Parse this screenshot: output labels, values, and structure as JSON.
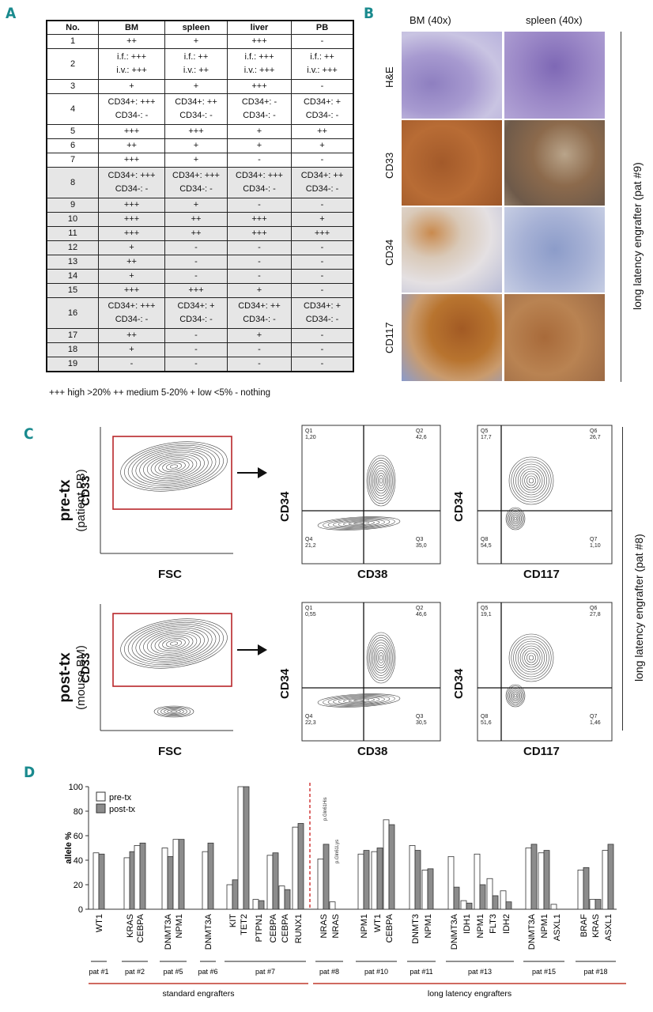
{
  "panels": {
    "A": "A",
    "B": "B",
    "C": "C",
    "D": "D"
  },
  "table": {
    "headers": [
      "No.",
      "BM",
      "spleen",
      "liver",
      "PB"
    ],
    "rows": [
      {
        "no": "1",
        "c": [
          [
            "++"
          ],
          [
            "+"
          ],
          [
            "+++"
          ],
          [
            "-"
          ]
        ],
        "shade": false
      },
      {
        "no": "2",
        "c": [
          [
            "i.f.: +++",
            "i.v.: +++"
          ],
          [
            "i.f.: ++",
            "i.v.: ++"
          ],
          [
            "i.f.: +++",
            "i.v.: +++"
          ],
          [
            "i.f.: ++",
            "i.v.: +++"
          ]
        ],
        "shade": false
      },
      {
        "no": "3",
        "c": [
          [
            "+"
          ],
          [
            "+"
          ],
          [
            "+++"
          ],
          [
            "-"
          ]
        ],
        "shade": false
      },
      {
        "no": "4",
        "c": [
          [
            "CD34+: +++",
            "CD34-: -"
          ],
          [
            "CD34+: ++",
            "CD34-: -"
          ],
          [
            "CD34+: -",
            "CD34-: -"
          ],
          [
            "CD34+: +",
            "CD34-: -"
          ]
        ],
        "shade": false
      },
      {
        "no": "5",
        "c": [
          [
            "+++"
          ],
          [
            "+++"
          ],
          [
            "+"
          ],
          [
            "++"
          ]
        ],
        "shade": false
      },
      {
        "no": "6",
        "c": [
          [
            "++"
          ],
          [
            "+"
          ],
          [
            "+"
          ],
          [
            "+"
          ]
        ],
        "shade": false
      },
      {
        "no": "7",
        "c": [
          [
            "+++"
          ],
          [
            "+"
          ],
          [
            "-"
          ],
          [
            "-"
          ]
        ],
        "shade": false
      },
      {
        "no": "8",
        "c": [
          [
            "CD34+: +++",
            "CD34-: -"
          ],
          [
            "CD34+: +++",
            "CD34-: -"
          ],
          [
            "CD34+: +++",
            "CD34-: -"
          ],
          [
            "CD34+: ++",
            "CD34-: -"
          ]
        ],
        "shade": true
      },
      {
        "no": "9",
        "c": [
          [
            "+++"
          ],
          [
            "+"
          ],
          [
            "-"
          ],
          [
            "-"
          ]
        ],
        "shade": true
      },
      {
        "no": "10",
        "c": [
          [
            "+++"
          ],
          [
            "++"
          ],
          [
            "+++"
          ],
          [
            "+"
          ]
        ],
        "shade": true
      },
      {
        "no": "11",
        "c": [
          [
            "+++"
          ],
          [
            "++"
          ],
          [
            "+++"
          ],
          [
            "+++"
          ]
        ],
        "shade": true
      },
      {
        "no": "12",
        "c": [
          [
            "+"
          ],
          [
            "-"
          ],
          [
            "-"
          ],
          [
            "-"
          ]
        ],
        "shade": true
      },
      {
        "no": "13",
        "c": [
          [
            "++"
          ],
          [
            "-"
          ],
          [
            "-"
          ],
          [
            "-"
          ]
        ],
        "shade": true
      },
      {
        "no": "14",
        "c": [
          [
            "+"
          ],
          [
            "-"
          ],
          [
            "-"
          ],
          [
            "-"
          ]
        ],
        "shade": true
      },
      {
        "no": "15",
        "c": [
          [
            "+++"
          ],
          [
            "+++"
          ],
          [
            "+"
          ],
          [
            "-"
          ]
        ],
        "shade": true
      },
      {
        "no": "16",
        "c": [
          [
            "CD34+: +++",
            "CD34-: -"
          ],
          [
            "CD34+: +",
            "CD34-: -"
          ],
          [
            "CD34+: ++",
            "CD34-: -"
          ],
          [
            "CD34+: +",
            "CD34-: -"
          ]
        ],
        "shade": true
      },
      {
        "no": "17",
        "c": [
          [
            "++"
          ],
          [
            "-"
          ],
          [
            "+"
          ],
          [
            "-"
          ]
        ],
        "shade": true
      },
      {
        "no": "18",
        "c": [
          [
            "+"
          ],
          [
            "-"
          ],
          [
            "-"
          ],
          [
            "-"
          ]
        ],
        "shade": true
      },
      {
        "no": "19",
        "c": [
          [
            "-"
          ],
          [
            "-"
          ],
          [
            "-"
          ],
          [
            "-"
          ]
        ],
        "shade": true
      }
    ],
    "legend": "+++ high >20%     ++ medium 5-20%     + low <5%     - nothing"
  },
  "ihc": {
    "columns": [
      "BM (40x)",
      "spleen (40x)"
    ],
    "rows": [
      "H&E",
      "CD33",
      "CD34",
      "CD117"
    ],
    "side_label": "long latency engrafter (pat #9)"
  },
  "flow": {
    "rows": [
      {
        "title": "pre-tx",
        "subtitle": "(patient PB)",
        "q1": [
          "Q1",
          "1,20"
        ],
        "q2": [
          "Q2",
          "42,6"
        ],
        "q3": [
          "Q3",
          "35,0"
        ],
        "q4": [
          "Q4",
          "21,2"
        ],
        "q5": [
          "Q5",
          "17,7"
        ],
        "q6": [
          "Q6",
          "26,7"
        ],
        "q7": [
          "Q7",
          "1,10"
        ],
        "q8": [
          "Q8",
          "54,5"
        ]
      },
      {
        "title": "post-tx",
        "subtitle": "(mouse BM)",
        "q1": [
          "Q1",
          "0,55"
        ],
        "q2": [
          "Q2",
          "46,6"
        ],
        "q3": [
          "Q3",
          "30,5"
        ],
        "q4": [
          "Q4",
          "22,3"
        ],
        "q5": [
          "Q5",
          "19,1"
        ],
        "q6": [
          "Q6",
          "27,8"
        ],
        "q7": [
          "Q7",
          "1,46"
        ],
        "q8": [
          "Q8",
          "51,6"
        ]
      }
    ],
    "axes": {
      "cd33": "CD33",
      "fsc": "FSC",
      "cd34": "CD34",
      "cd38": "CD38",
      "cd117": "CD117"
    },
    "side_label": "long latency engrafter (pat #8)"
  },
  "chart_data": {
    "type": "bar",
    "ylabel": "allele %",
    "ylim": [
      0,
      100
    ],
    "yticks": [
      0,
      20,
      40,
      60,
      80,
      100
    ],
    "series_names": [
      "pre-tx",
      "post-tx"
    ],
    "colors": {
      "pre": "#ffffff",
      "post": "#8c8c8c"
    },
    "categories": [
      "WT1",
      "KRAS",
      "CEBPA",
      "DNMT3A",
      "NPM1",
      "DNMT3A",
      "KIT",
      "TET2",
      "PTPN1",
      "CEBPA",
      "CEBPA",
      "RUNX1",
      "NRAS",
      "NRAS",
      "NPM1",
      "WT1",
      "CEBPA",
      "DNMT3",
      "NPM1",
      "DNMT3A",
      "IDH1",
      "NPM1",
      "FLT3",
      "IDH2",
      "DNMT3A",
      "NPM1",
      "ASXL1",
      "BRAF",
      "KRAS",
      "ASXL1"
    ],
    "pre": [
      46,
      42,
      52,
      50,
      57,
      47,
      20,
      100,
      8,
      44,
      19,
      67,
      41,
      6,
      45,
      47,
      73,
      52,
      32,
      43,
      7,
      45,
      25,
      15,
      50,
      46,
      4,
      32,
      8,
      48
    ],
    "post": [
      45,
      47,
      54,
      43,
      57,
      54,
      24,
      100,
      7,
      46,
      16,
      70,
      53,
      0,
      48,
      50,
      69,
      48,
      33,
      18,
      5,
      20,
      11,
      6,
      53,
      48,
      0,
      34,
      8,
      53
    ],
    "annotations": [
      "p.Gln61His",
      "p.Gln61Lys"
    ],
    "patients": [
      {
        "label": "pat #1",
        "from": 0,
        "to": 0
      },
      {
        "label": "pat #2",
        "from": 1,
        "to": 2
      },
      {
        "label": "pat #5",
        "from": 3,
        "to": 4
      },
      {
        "label": "pat #6",
        "from": 5,
        "to": 5
      },
      {
        "label": "pat #7",
        "from": 6,
        "to": 11
      },
      {
        "label": "pat #8",
        "from": 12,
        "to": 13
      },
      {
        "label": "pat #10",
        "from": 14,
        "to": 16
      },
      {
        "label": "pat #11",
        "from": 17,
        "to": 18
      },
      {
        "label": "pat #13",
        "from": 19,
        "to": 23
      },
      {
        "label": "pat #15",
        "from": 24,
        "to": 26
      },
      {
        "label": "pat #18",
        "from": 27,
        "to": 29
      }
    ],
    "groups": [
      {
        "label": "standard engrafters",
        "from": 0,
        "to": 11
      },
      {
        "label": "long latency engrafters",
        "from": 12,
        "to": 29
      }
    ]
  }
}
